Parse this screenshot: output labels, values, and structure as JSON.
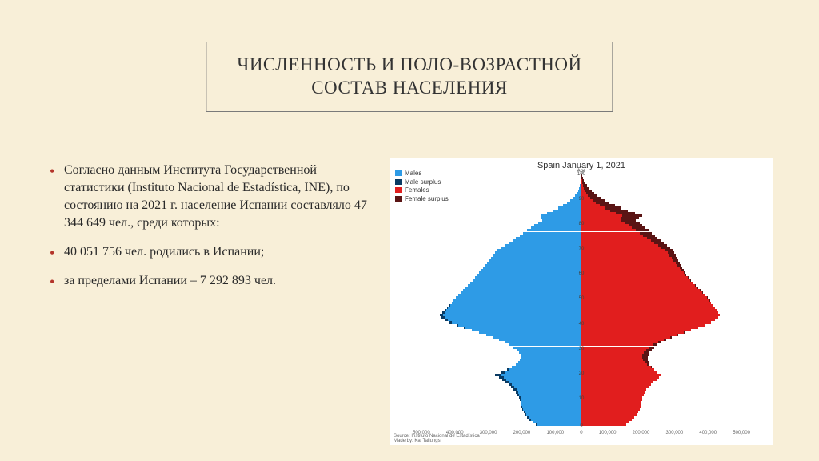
{
  "title": "ЧИСЛЕННОСТЬ И ПОЛО-ВОЗРАСТНОЙ\nСОСТАВ НАСЕЛЕНИЯ",
  "bullets": [
    "Согласно данным Института Государственной статистики (Instituto Nacional de Estadística, INE), по состоянию на 2021 г. население Испании составляло 47 344 649 чел., среди которых:",
    "40 051 756 чел. родились в Испании;",
    "за пределами Испании – 7 292 893 чел."
  ],
  "chart": {
    "title": "Spain January 1, 2021",
    "legend": [
      {
        "label": "Males",
        "color": "#2e9be6"
      },
      {
        "label": "Male surplus",
        "color": "#0a3b63"
      },
      {
        "label": "Females",
        "color": "#e11e1e"
      },
      {
        "label": "Female surplus",
        "color": "#5a1414"
      }
    ],
    "colors": {
      "male": "#2e9be6",
      "male_surplus": "#0a3b63",
      "female": "#e11e1e",
      "female_surplus": "#5a1414",
      "background": "#ffffff"
    },
    "x_max": 500000,
    "x_ticks": [
      "500,000",
      "400,000",
      "300,000",
      "200,000",
      "100,000",
      "0",
      "100,000",
      "200,000",
      "300,000",
      "400,000",
      "500,000"
    ],
    "y_ticks": [
      100,
      90,
      80,
      70,
      60,
      50,
      40,
      30,
      20,
      10,
      0
    ],
    "age_top_label": "Age",
    "source": "Source: Instituto Nacional de Estadística\nMade by: Kaj Tallungs",
    "rows": [
      {
        "a": 100,
        "m": 500,
        "f": 2500
      },
      {
        "a": 99,
        "m": 900,
        "f": 4500
      },
      {
        "a": 98,
        "m": 1500,
        "f": 7000
      },
      {
        "a": 97,
        "m": 2500,
        "f": 11000
      },
      {
        "a": 96,
        "m": 4000,
        "f": 16000
      },
      {
        "a": 95,
        "m": 6500,
        "f": 23000
      },
      {
        "a": 94,
        "m": 9500,
        "f": 30000
      },
      {
        "a": 93,
        "m": 13500,
        "f": 38000
      },
      {
        "a": 92,
        "m": 18500,
        "f": 47000
      },
      {
        "a": 91,
        "m": 25000,
        "f": 57000
      },
      {
        "a": 90,
        "m": 33000,
        "f": 69000
      },
      {
        "a": 89,
        "m": 43000,
        "f": 83000
      },
      {
        "a": 88,
        "m": 55000,
        "f": 99000
      },
      {
        "a": 87,
        "m": 69000,
        "f": 117000
      },
      {
        "a": 86,
        "m": 85000,
        "f": 137000
      },
      {
        "a": 85,
        "m": 103000,
        "f": 158000
      },
      {
        "a": 84,
        "m": 122000,
        "f": 179000
      },
      {
        "a": 83,
        "m": 119000,
        "f": 170000
      },
      {
        "a": 82,
        "m": 116000,
        "f": 162000
      },
      {
        "a": 81,
        "m": 128000,
        "f": 172000
      },
      {
        "a": 80,
        "m": 139000,
        "f": 181000
      },
      {
        "a": 79,
        "m": 150000,
        "f": 190000
      },
      {
        "a": 78,
        "m": 161000,
        "f": 199000
      },
      {
        "a": 77,
        "m": 172000,
        "f": 208000
      },
      {
        "a": 76,
        "m": 183000,
        "f": 217000
      },
      {
        "a": 75,
        "m": 194000,
        "f": 226000
      },
      {
        "a": 74,
        "m": 205000,
        "f": 235000
      },
      {
        "a": 73,
        "m": 216000,
        "f": 244000
      },
      {
        "a": 72,
        "m": 227000,
        "f": 253000
      },
      {
        "a": 71,
        "m": 238000,
        "f": 262000
      },
      {
        "a": 70,
        "m": 249000,
        "f": 271000
      },
      {
        "a": 69,
        "m": 255000,
        "f": 275000
      },
      {
        "a": 68,
        "m": 261000,
        "f": 279000
      },
      {
        "a": 67,
        "m": 267000,
        "f": 283000
      },
      {
        "a": 66,
        "m": 273000,
        "f": 287000
      },
      {
        "a": 65,
        "m": 279000,
        "f": 291000
      },
      {
        "a": 64,
        "m": 285000,
        "f": 295000
      },
      {
        "a": 63,
        "m": 291000,
        "f": 299000
      },
      {
        "a": 62,
        "m": 297000,
        "f": 303000
      },
      {
        "a": 61,
        "m": 303000,
        "f": 307000
      },
      {
        "a": 60,
        "m": 309000,
        "f": 311000
      },
      {
        "a": 59,
        "m": 315000,
        "f": 317000
      },
      {
        "a": 58,
        "m": 322000,
        "f": 323000
      },
      {
        "a": 57,
        "m": 329000,
        "f": 330000
      },
      {
        "a": 56,
        "m": 336000,
        "f": 337000
      },
      {
        "a": 55,
        "m": 343000,
        "f": 344000
      },
      {
        "a": 54,
        "m": 350000,
        "f": 351000
      },
      {
        "a": 53,
        "m": 357000,
        "f": 358000
      },
      {
        "a": 52,
        "m": 364000,
        "f": 365000
      },
      {
        "a": 51,
        "m": 371000,
        "f": 372000
      },
      {
        "a": 50,
        "m": 378000,
        "f": 379000
      },
      {
        "a": 49,
        "m": 385000,
        "f": 384000
      },
      {
        "a": 48,
        "m": 392000,
        "f": 389000
      },
      {
        "a": 47,
        "m": 399000,
        "f": 395000
      },
      {
        "a": 46,
        "m": 406000,
        "f": 400000
      },
      {
        "a": 45,
        "m": 413000,
        "f": 405000
      },
      {
        "a": 44,
        "m": 420000,
        "f": 410000
      },
      {
        "a": 43,
        "m": 415000,
        "f": 405000
      },
      {
        "a": 42,
        "m": 405000,
        "f": 396000
      },
      {
        "a": 41,
        "m": 390000,
        "f": 383000
      },
      {
        "a": 40,
        "m": 370000,
        "f": 365000
      },
      {
        "a": 39,
        "m": 348000,
        "f": 345000
      },
      {
        "a": 38,
        "m": 325000,
        "f": 325000
      },
      {
        "a": 37,
        "m": 303000,
        "f": 305000
      },
      {
        "a": 36,
        "m": 282000,
        "f": 286000
      },
      {
        "a": 35,
        "m": 262000,
        "f": 268000
      },
      {
        "a": 34,
        "m": 244000,
        "f": 252000
      },
      {
        "a": 33,
        "m": 228000,
        "f": 238000
      },
      {
        "a": 32,
        "m": 214000,
        "f": 226000
      },
      {
        "a": 31,
        "m": 202000,
        "f": 216000
      },
      {
        "a": 30,
        "m": 192000,
        "f": 208000
      },
      {
        "a": 29,
        "m": 185000,
        "f": 202000
      },
      {
        "a": 28,
        "m": 181000,
        "f": 198000
      },
      {
        "a": 27,
        "m": 180000,
        "f": 196000
      },
      {
        "a": 26,
        "m": 182000,
        "f": 196000
      },
      {
        "a": 25,
        "m": 187000,
        "f": 198000
      },
      {
        "a": 24,
        "m": 195000,
        "f": 202000
      },
      {
        "a": 23,
        "m": 206000,
        "f": 208000
      },
      {
        "a": 22,
        "m": 220000,
        "f": 216000
      },
      {
        "a": 21,
        "m": 237000,
        "f": 226000
      },
      {
        "a": 20,
        "m": 256000,
        "f": 238000
      },
      {
        "a": 19,
        "m": 245000,
        "f": 230000
      },
      {
        "a": 18,
        "m": 235000,
        "f": 222000
      },
      {
        "a": 17,
        "m": 225000,
        "f": 214000
      },
      {
        "a": 16,
        "m": 216000,
        "f": 206000
      },
      {
        "a": 15,
        "m": 208000,
        "f": 199000
      },
      {
        "a": 14,
        "m": 201000,
        "f": 193000
      },
      {
        "a": 13,
        "m": 195000,
        "f": 188000
      },
      {
        "a": 12,
        "m": 190000,
        "f": 184000
      },
      {
        "a": 11,
        "m": 186000,
        "f": 181000
      },
      {
        "a": 10,
        "m": 183000,
        "f": 179000
      },
      {
        "a": 9,
        "m": 181000,
        "f": 178000
      },
      {
        "a": 8,
        "m": 180000,
        "f": 177000
      },
      {
        "a": 7,
        "m": 178000,
        "f": 175000
      },
      {
        "a": 6,
        "m": 175000,
        "f": 172000
      },
      {
        "a": 5,
        "m": 171000,
        "f": 168000
      },
      {
        "a": 4,
        "m": 166000,
        "f": 163000
      },
      {
        "a": 3,
        "m": 160000,
        "f": 157000
      },
      {
        "a": 2,
        "m": 153000,
        "f": 150000
      },
      {
        "a": 1,
        "m": 145000,
        "f": 142000
      },
      {
        "a": 0,
        "m": 136000,
        "f": 133000
      }
    ]
  }
}
